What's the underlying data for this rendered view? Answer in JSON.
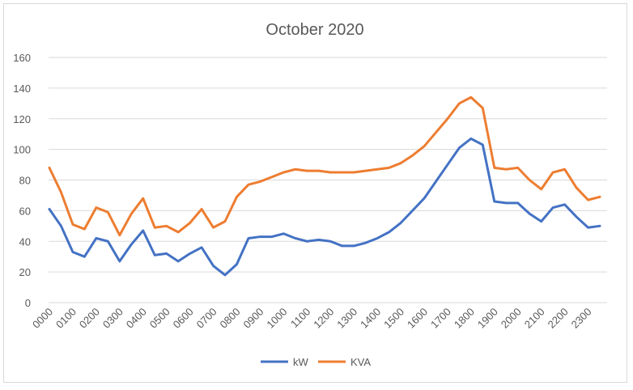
{
  "chart_data": {
    "type": "line",
    "title": "October 2020",
    "xlabel": "",
    "ylabel": "",
    "ylim": [
      0,
      160
    ],
    "yticks": [
      0,
      20,
      40,
      60,
      80,
      100,
      120,
      140,
      160
    ],
    "x_tick_labels": [
      "0000",
      "0100",
      "0200",
      "0300",
      "0400",
      "0500",
      "0600",
      "0700",
      "0800",
      "0900",
      "1000",
      "1100",
      "1200",
      "1300",
      "1400",
      "1500",
      "1600",
      "1700",
      "1800",
      "1900",
      "2000",
      "2100",
      "2200",
      "2300"
    ],
    "grid": true,
    "legend_position": "bottom",
    "series": [
      {
        "name": "kW",
        "color": "#4472c4",
        "values": [
          61,
          50,
          33,
          30,
          42,
          40,
          27,
          38,
          47,
          31,
          32,
          27,
          32,
          36,
          24,
          18,
          25,
          42,
          43,
          43,
          45,
          42,
          40,
          41,
          40,
          37,
          37,
          39,
          42,
          46,
          52,
          60,
          68,
          79,
          90,
          101,
          107,
          103,
          66,
          65,
          65,
          58,
          53,
          62,
          64,
          56,
          49,
          50
        ]
      },
      {
        "name": "KVA",
        "color": "#ed7d31",
        "values": [
          88,
          72,
          51,
          48,
          62,
          59,
          44,
          58,
          68,
          49,
          50,
          46,
          52,
          61,
          49,
          53,
          69,
          77,
          79,
          82,
          85,
          87,
          86,
          86,
          85,
          85,
          85,
          86,
          87,
          88,
          91,
          96,
          102,
          111,
          120,
          130,
          134,
          127,
          88,
          87,
          88,
          80,
          74,
          85,
          87,
          75,
          67,
          69
        ]
      }
    ]
  }
}
